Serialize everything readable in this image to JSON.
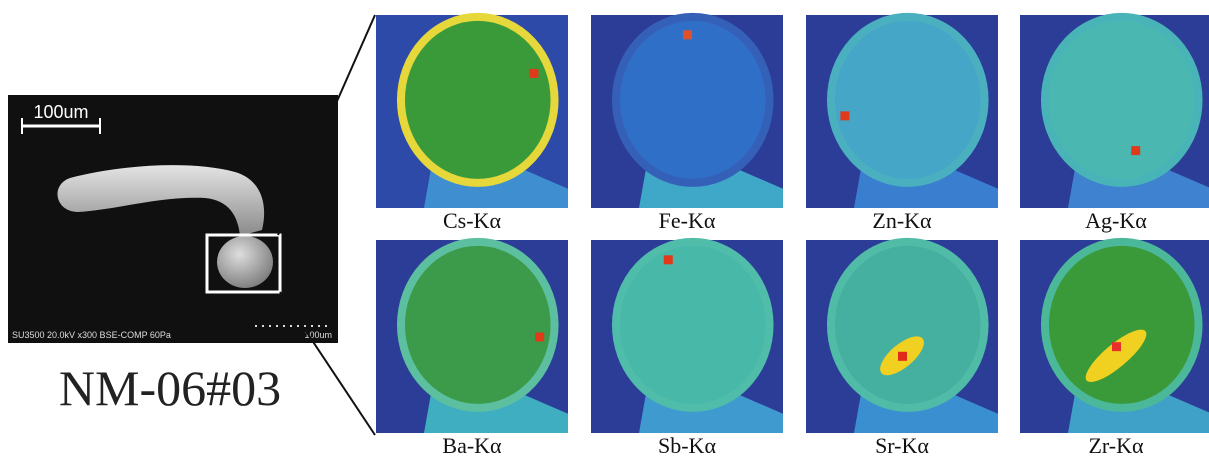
{
  "sem": {
    "scale_label": "100um",
    "info_text": "SU3500 20.0kV x300 BSE-COMP 60Pa",
    "scale_label_2": "100um"
  },
  "sample_label": "NM-06#03",
  "maps": [
    {
      "label": "Cs-Kα"
    },
    {
      "label": "Fe-Kα"
    },
    {
      "label": "Zn-Kα"
    },
    {
      "label": "Ag-Kα"
    },
    {
      "label": "Ba-Kα"
    },
    {
      "label": "Sb-Kα"
    },
    {
      "label": "Sr-Kα"
    },
    {
      "label": "Zr-Kα"
    }
  ]
}
